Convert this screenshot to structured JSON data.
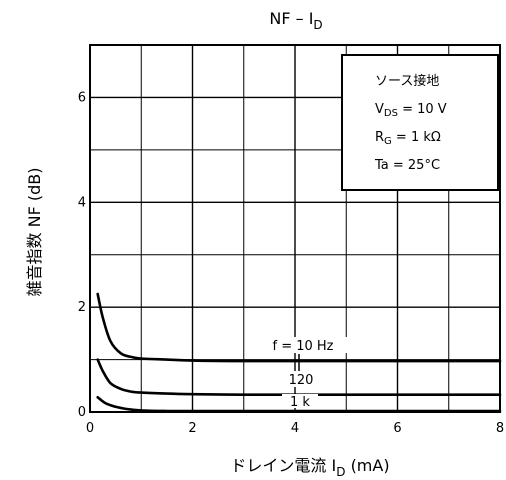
{
  "chart_data": {
    "type": "line",
    "title": "NF – I",
    "title_sub": "D",
    "xlabel": "ドレイン電流 I",
    "xlabel_sub": "D",
    "xlabel_unit": "(mA)",
    "ylabel": "雑音指数 NF (dB)",
    "xlim": [
      0,
      8
    ],
    "ylim": [
      0,
      7
    ],
    "x_ticks": [
      0,
      2,
      4,
      6,
      8
    ],
    "y_ticks": [
      0,
      2,
      4,
      6
    ],
    "grid": true,
    "conditions": [
      {
        "text": "ソース接地"
      },
      {
        "main": "V",
        "sub": "DS",
        "rest": " = 10 V"
      },
      {
        "main": "R",
        "sub": "G",
        "rest": " = 1 kΩ"
      },
      {
        "text": "Ta = 25°C"
      }
    ],
    "series": [
      {
        "name": "f = 10 Hz",
        "x": [
          0.15,
          0.25,
          0.4,
          0.6,
          0.8,
          1,
          1.5,
          2,
          3,
          4,
          5,
          6,
          7,
          8
        ],
        "y": [
          2.25,
          1.8,
          1.35,
          1.12,
          1.05,
          1.02,
          1.0,
          0.98,
          0.97,
          0.97,
          0.97,
          0.97,
          0.97,
          0.97
        ]
      },
      {
        "name": "120",
        "x": [
          0.15,
          0.25,
          0.4,
          0.6,
          0.8,
          1,
          1.5,
          2,
          3,
          4,
          5,
          6,
          7,
          8
        ],
        "y": [
          1.0,
          0.78,
          0.55,
          0.44,
          0.39,
          0.37,
          0.35,
          0.34,
          0.33,
          0.33,
          0.33,
          0.33,
          0.33,
          0.33
        ]
      },
      {
        "name": "1 k",
        "x": [
          0.15,
          0.3,
          0.5,
          0.7,
          1,
          1.5,
          2,
          3,
          4,
          5,
          6,
          7,
          8
        ],
        "y": [
          0.28,
          0.17,
          0.1,
          0.06,
          0.03,
          0.02,
          0.02,
          0.02,
          0.02,
          0.02,
          0.02,
          0.02,
          0.02
        ]
      }
    ]
  }
}
